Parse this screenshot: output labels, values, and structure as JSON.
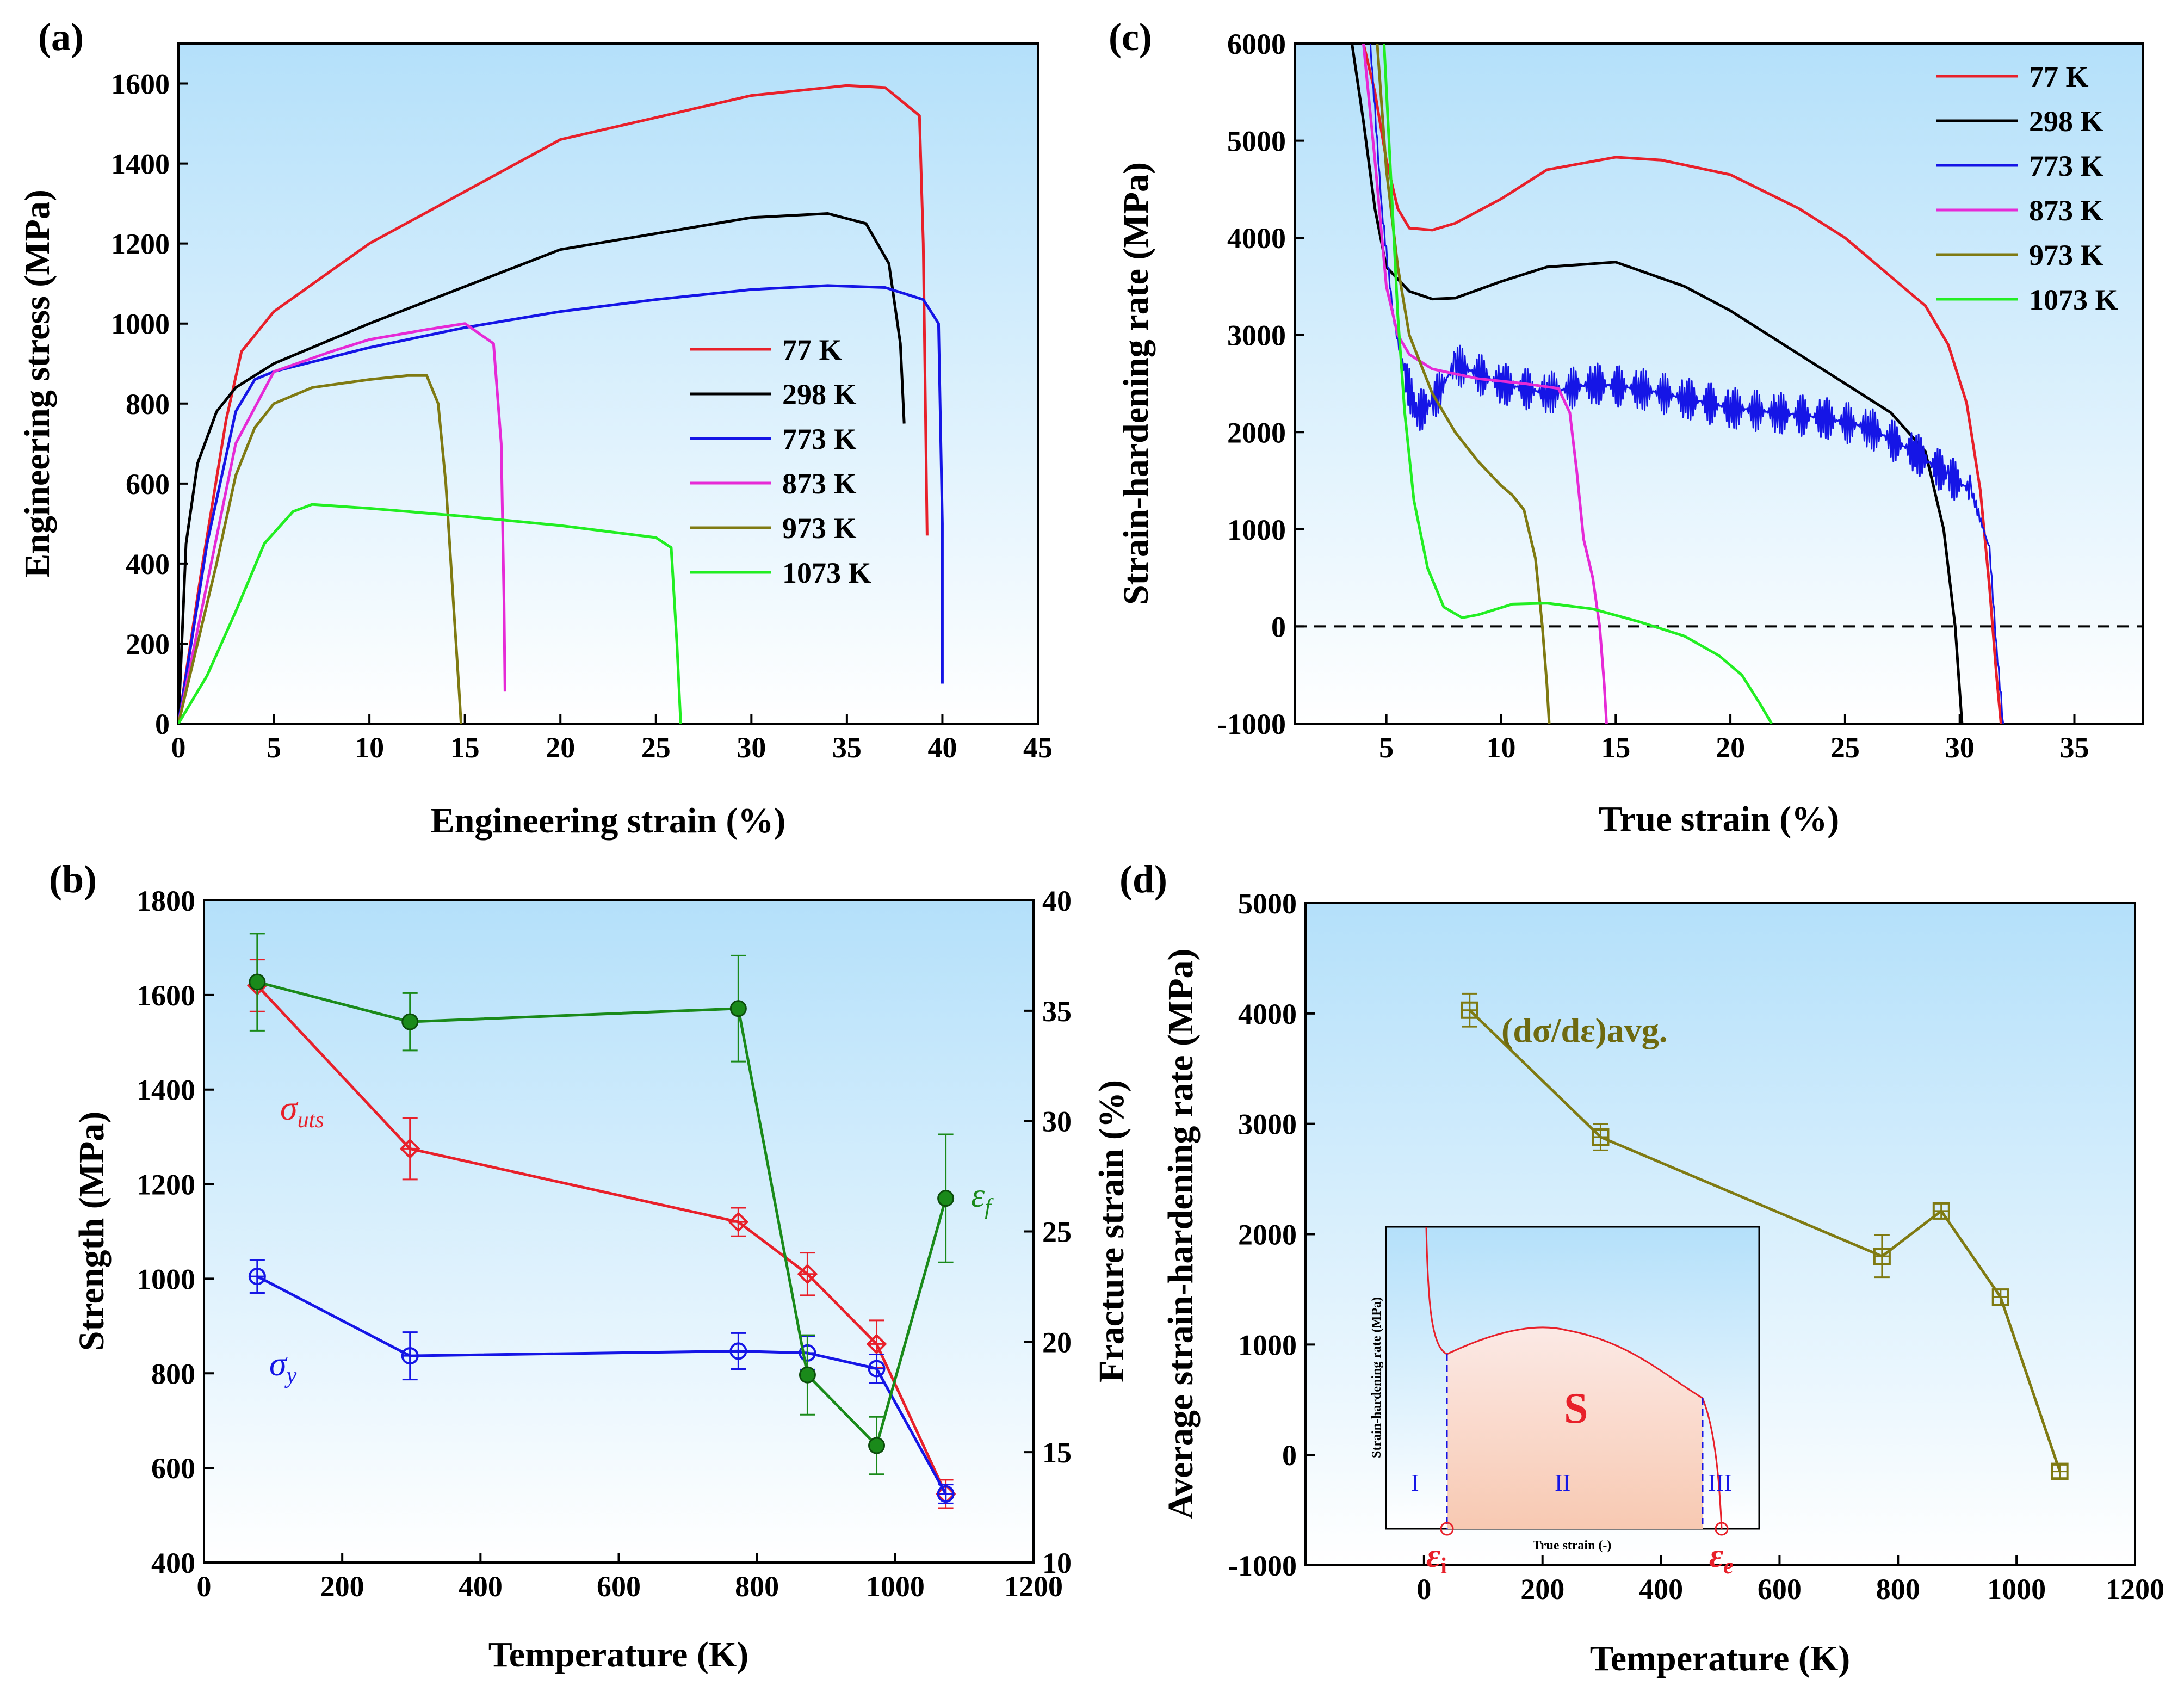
{
  "chart_data": [
    {
      "panel": "(a)",
      "type": "line",
      "xlabel": "Engineering strain (%)",
      "ylabel": "Engineering stress (MPa)",
      "xlim": [
        0,
        45
      ],
      "ylim": [
        0,
        1700
      ],
      "xticks": [
        0,
        5,
        10,
        15,
        20,
        25,
        30,
        35,
        40,
        45
      ],
      "yticks": [
        0,
        200,
        400,
        600,
        800,
        1000,
        1200,
        1400,
        1600
      ],
      "legend_position": "right-middle",
      "series": [
        {
          "name": "77 K",
          "color": "#e8202a",
          "x": [
            0,
            1.2,
            2.5,
            3.3,
            5,
            10,
            20,
            30,
            35,
            37,
            38.8,
            39,
            39.2
          ],
          "y": [
            0,
            380,
            760,
            930,
            1030,
            1200,
            1460,
            1570,
            1595,
            1590,
            1520,
            1200,
            470
          ]
        },
        {
          "name": "298 K",
          "color": "#000000",
          "x": [
            0,
            0.4,
            1,
            2,
            3,
            5,
            10,
            20,
            30,
            34,
            36,
            37.2,
            37.8,
            38
          ],
          "y": [
            0,
            450,
            650,
            780,
            840,
            900,
            1000,
            1185,
            1265,
            1275,
            1250,
            1150,
            950,
            750
          ]
        },
        {
          "name": "773 K",
          "color": "#1515e6",
          "x": [
            0,
            1.5,
            3,
            4,
            5,
            10,
            15,
            20,
            25,
            30,
            34,
            37,
            39,
            39.8,
            40,
            40
          ],
          "y": [
            0,
            450,
            780,
            860,
            880,
            940,
            990,
            1030,
            1060,
            1085,
            1095,
            1090,
            1060,
            1000,
            500,
            100
          ]
        },
        {
          "name": "873 K",
          "color": "#e62ad6",
          "x": [
            0,
            1.5,
            3,
            5,
            8,
            10,
            13,
            15,
            16.5,
            16.9,
            17.05,
            17.1
          ],
          "y": [
            0,
            350,
            700,
            880,
            930,
            960,
            985,
            1000,
            950,
            700,
            300,
            80
          ]
        },
        {
          "name": "973 K",
          "color": "#7f7a12",
          "x": [
            0,
            1,
            2,
            3,
            4,
            5,
            7,
            10,
            12,
            13,
            13.6,
            14,
            14.4,
            14.7,
            14.8
          ],
          "y": [
            0,
            200,
            400,
            620,
            740,
            800,
            840,
            860,
            870,
            870,
            800,
            600,
            300,
            80,
            0
          ]
        },
        {
          "name": "1073 K",
          "color": "#22ee22",
          "x": [
            0,
            1.5,
            3,
            4.5,
            6,
            7,
            10,
            15,
            20,
            25,
            25.8,
            26.1,
            26.3
          ],
          "y": [
            0,
            120,
            280,
            450,
            530,
            548,
            538,
            518,
            495,
            465,
            440,
            200,
            0
          ]
        }
      ]
    },
    {
      "panel": "(b)",
      "type": "line",
      "xlabel": "Temperature (K)",
      "ylabel": "Strength (MPa)",
      "ylabel_right": "Fracture strain (%)",
      "xlim": [
        0,
        1200
      ],
      "ylim": [
        400,
        1800
      ],
      "ylim_right": [
        10,
        40
      ],
      "xticks": [
        0,
        200,
        400,
        600,
        800,
        1000,
        1200
      ],
      "yticks": [
        400,
        600,
        800,
        1000,
        1200,
        1400,
        1600,
        1800
      ],
      "yticks_right": [
        10,
        15,
        20,
        25,
        30,
        35,
        40
      ],
      "series": [
        {
          "name": "σuts",
          "label_main": "σ",
          "label_sub": "uts",
          "color": "#e8202a",
          "axis": "left",
          "marker": "diamond",
          "x": [
            77,
            298,
            773,
            873,
            973,
            1073
          ],
          "y": [
            1620,
            1275,
            1120,
            1010,
            862,
            545
          ],
          "err": [
            55,
            65,
            30,
            45,
            50,
            30
          ]
        },
        {
          "name": "σy",
          "label_main": "σ",
          "label_sub": "y",
          "color": "#1515e6",
          "axis": "left",
          "marker": "circle-plus",
          "x": [
            77,
            298,
            773,
            873,
            973,
            1073
          ],
          "y": [
            1005,
            837,
            847,
            843,
            810,
            545
          ],
          "err": [
            35,
            50,
            38,
            35,
            30,
            20
          ]
        },
        {
          "name": "εf",
          "label_main": "ε",
          "label_sub": "f",
          "color": "#1a8a1a",
          "axis": "right",
          "marker": "circle",
          "x": [
            77,
            298,
            773,
            873,
            973,
            1073
          ],
          "y": [
            36.3,
            34.5,
            35.1,
            18.5,
            15.3,
            26.5
          ],
          "err": [
            2.2,
            1.3,
            2.4,
            1.8,
            1.3,
            2.9
          ]
        }
      ]
    },
    {
      "panel": "(c)",
      "type": "line",
      "xlabel": "True strain (%)",
      "ylabel": "Strain-hardening rate (MPa)",
      "xlim": [
        1,
        38
      ],
      "ylim": [
        -1000,
        6000
      ],
      "xticks": [
        5,
        10,
        15,
        20,
        25,
        30,
        35
      ],
      "yticks": [
        -1000,
        0,
        1000,
        2000,
        3000,
        4000,
        5000,
        6000
      ],
      "reference_line_y": 0,
      "legend_position": "top-right",
      "series": [
        {
          "name": "77 K",
          "color": "#e8202a",
          "x": [
            4,
            4.5,
            5,
            5.5,
            6,
            7,
            8,
            10,
            12,
            15,
            17,
            20,
            23,
            25,
            27,
            28.5,
            29.5,
            30.3,
            30.9,
            31.3,
            31.6,
            31.8
          ],
          "y": [
            6000,
            5500,
            4800,
            4300,
            4100,
            4080,
            4150,
            4400,
            4700,
            4830,
            4800,
            4650,
            4300,
            4000,
            3600,
            3300,
            2900,
            2300,
            1400,
            400,
            -500,
            -1000
          ]
        },
        {
          "name": "298 K",
          "color": "#000000",
          "x": [
            3.5,
            4,
            4.5,
            5,
            6,
            7,
            8,
            10,
            12,
            15,
            18,
            20,
            24,
            27,
            28.5,
            29.3,
            29.8,
            30.1
          ],
          "y": [
            6000,
            5200,
            4300,
            3700,
            3450,
            3370,
            3380,
            3550,
            3700,
            3750,
            3500,
            3250,
            2650,
            2200,
            1800,
            1000,
            0,
            -1000
          ]
        },
        {
          "name": "773 K",
          "color": "#1515e6",
          "noise": true,
          "x": [
            4.3,
            4.8,
            5.3,
            5.8,
            6.3,
            7,
            8,
            10,
            12,
            14,
            16,
            18,
            20,
            22,
            24,
            26,
            28,
            29.5,
            30.5,
            31.3,
            31.6,
            31.9
          ],
          "y": [
            6000,
            4300,
            3200,
            2600,
            2200,
            2300,
            2700,
            2500,
            2400,
            2500,
            2450,
            2350,
            2250,
            2200,
            2150,
            2050,
            1800,
            1550,
            1400,
            800,
            -200,
            -1000
          ]
        },
        {
          "name": "873 K",
          "color": "#e62ad6",
          "x": [
            4,
            4.5,
            5,
            5.5,
            6,
            7,
            9,
            11,
            12.5,
            13,
            13.3,
            13.6,
            14,
            14.3,
            14.5,
            14.6
          ],
          "y": [
            6000,
            4800,
            3500,
            3000,
            2800,
            2650,
            2550,
            2500,
            2450,
            2200,
            1600,
            900,
            500,
            0,
            -600,
            -1000
          ]
        },
        {
          "name": "973 K",
          "color": "#7f7a12",
          "x": [
            4.6,
            5,
            5.5,
            6,
            7,
            8,
            9,
            10,
            10.5,
            11,
            11.5,
            11.8,
            12,
            12.1
          ],
          "y": [
            6000,
            4700,
            3700,
            3000,
            2400,
            2000,
            1700,
            1450,
            1350,
            1200,
            700,
            0,
            -600,
            -1000
          ]
        },
        {
          "name": "1073 K",
          "color": "#22ee22",
          "x": [
            4.9,
            5.2,
            5.5,
            5.8,
            6.2,
            6.8,
            7.5,
            8.3,
            9,
            10.5,
            12,
            14,
            16,
            18,
            19.5,
            20.5,
            21.3,
            21.8
          ],
          "y": [
            6000,
            4600,
            3200,
            2200,
            1300,
            600,
            200,
            90,
            120,
            230,
            240,
            180,
            50,
            -100,
            -300,
            -500,
            -800,
            -1000
          ]
        }
      ]
    },
    {
      "panel": "(d)",
      "type": "line",
      "xlabel": "Temperature (K)",
      "ylabel": "Average strain-hardening rate (MPa)",
      "xlim": [
        -200,
        1200
      ],
      "ylim": [
        -1000,
        5000
      ],
      "xticks": [
        0,
        200,
        400,
        600,
        800,
        1000,
        1200
      ],
      "yticks": [
        -1000,
        0,
        1000,
        2000,
        3000,
        4000,
        5000
      ],
      "annotation": "(dσ/dε)avg.",
      "series": [
        {
          "name": "(dσ/dε)avg.",
          "color": "#7f7a12",
          "marker": "square-plus",
          "x": [
            77,
            298,
            773,
            873,
            973,
            1073
          ],
          "y": [
            4030,
            2880,
            1800,
            2210,
            1430,
            -150
          ],
          "err": [
            150,
            120,
            190,
            70,
            70,
            60
          ]
        }
      ],
      "inset": {
        "ylabel": "Strain-hardening rate (MPa)",
        "xlabel": "True strain (-)",
        "stages": [
          "I",
          "II",
          "III"
        ],
        "region_label": "S",
        "markers": [
          {
            "main": "ε",
            "sub": "i"
          },
          {
            "main": "ε",
            "sub": "e"
          }
        ]
      }
    }
  ]
}
